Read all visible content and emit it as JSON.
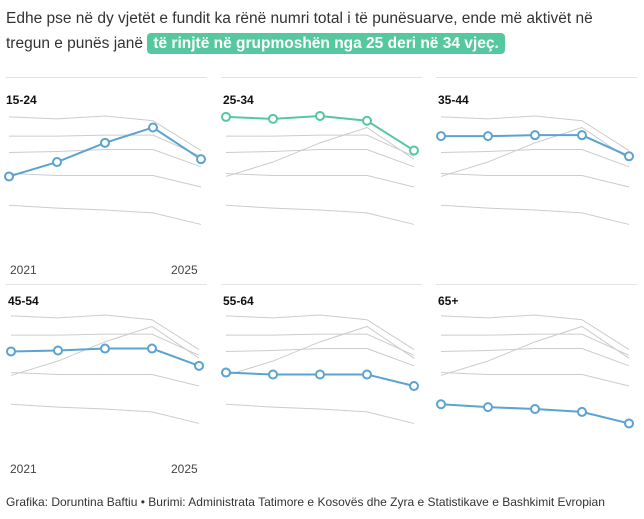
{
  "headline": {
    "text": "Edhe pse në dy vjetët e fundit ka rënë numri total i të punësuarve, ende më aktivët në tregun e punës janë",
    "highlight": "të rinjtë në grupmoshën nga 25 deri në 34 vjeç."
  },
  "footer": "Grafika: Doruntina Baftiu • Burimi: Administrata Tatimore e Kosovës dhe Zyra e Statistikave e Bashkimit Evropian",
  "colors": {
    "highlight": "#56c8a0",
    "series": "#5ba3d0",
    "context": "#cccccc"
  },
  "x_start_label": "2021",
  "x_end_label": "2025",
  "chart_data": {
    "type": "line",
    "layout": "small-multiples",
    "x": [
      2021,
      2022,
      2023,
      2024,
      2025
    ],
    "ylim": [
      0,
      100
    ],
    "grid": false,
    "title": "",
    "xlabel": "",
    "ylabel": "",
    "series": [
      {
        "name": "15-24",
        "values": [
          36,
          51,
          71,
          87,
          54
        ],
        "color": "#5ba3d0"
      },
      {
        "name": "25-34",
        "values": [
          98,
          96,
          99,
          94,
          63
        ],
        "color": "#56c8a0"
      },
      {
        "name": "35-44",
        "values": [
          78,
          78,
          79,
          79,
          57
        ],
        "color": "#5ba3d0"
      },
      {
        "name": "45-54",
        "values": [
          61,
          62,
          64,
          64,
          46
        ],
        "color": "#5ba3d0"
      },
      {
        "name": "55-64",
        "values": [
          39,
          37,
          37,
          37,
          25
        ],
        "color": "#5ba3d0"
      },
      {
        "name": "65+",
        "values": [
          6,
          3,
          1,
          -2,
          -14
        ],
        "color": "#5ba3d0"
      }
    ]
  }
}
